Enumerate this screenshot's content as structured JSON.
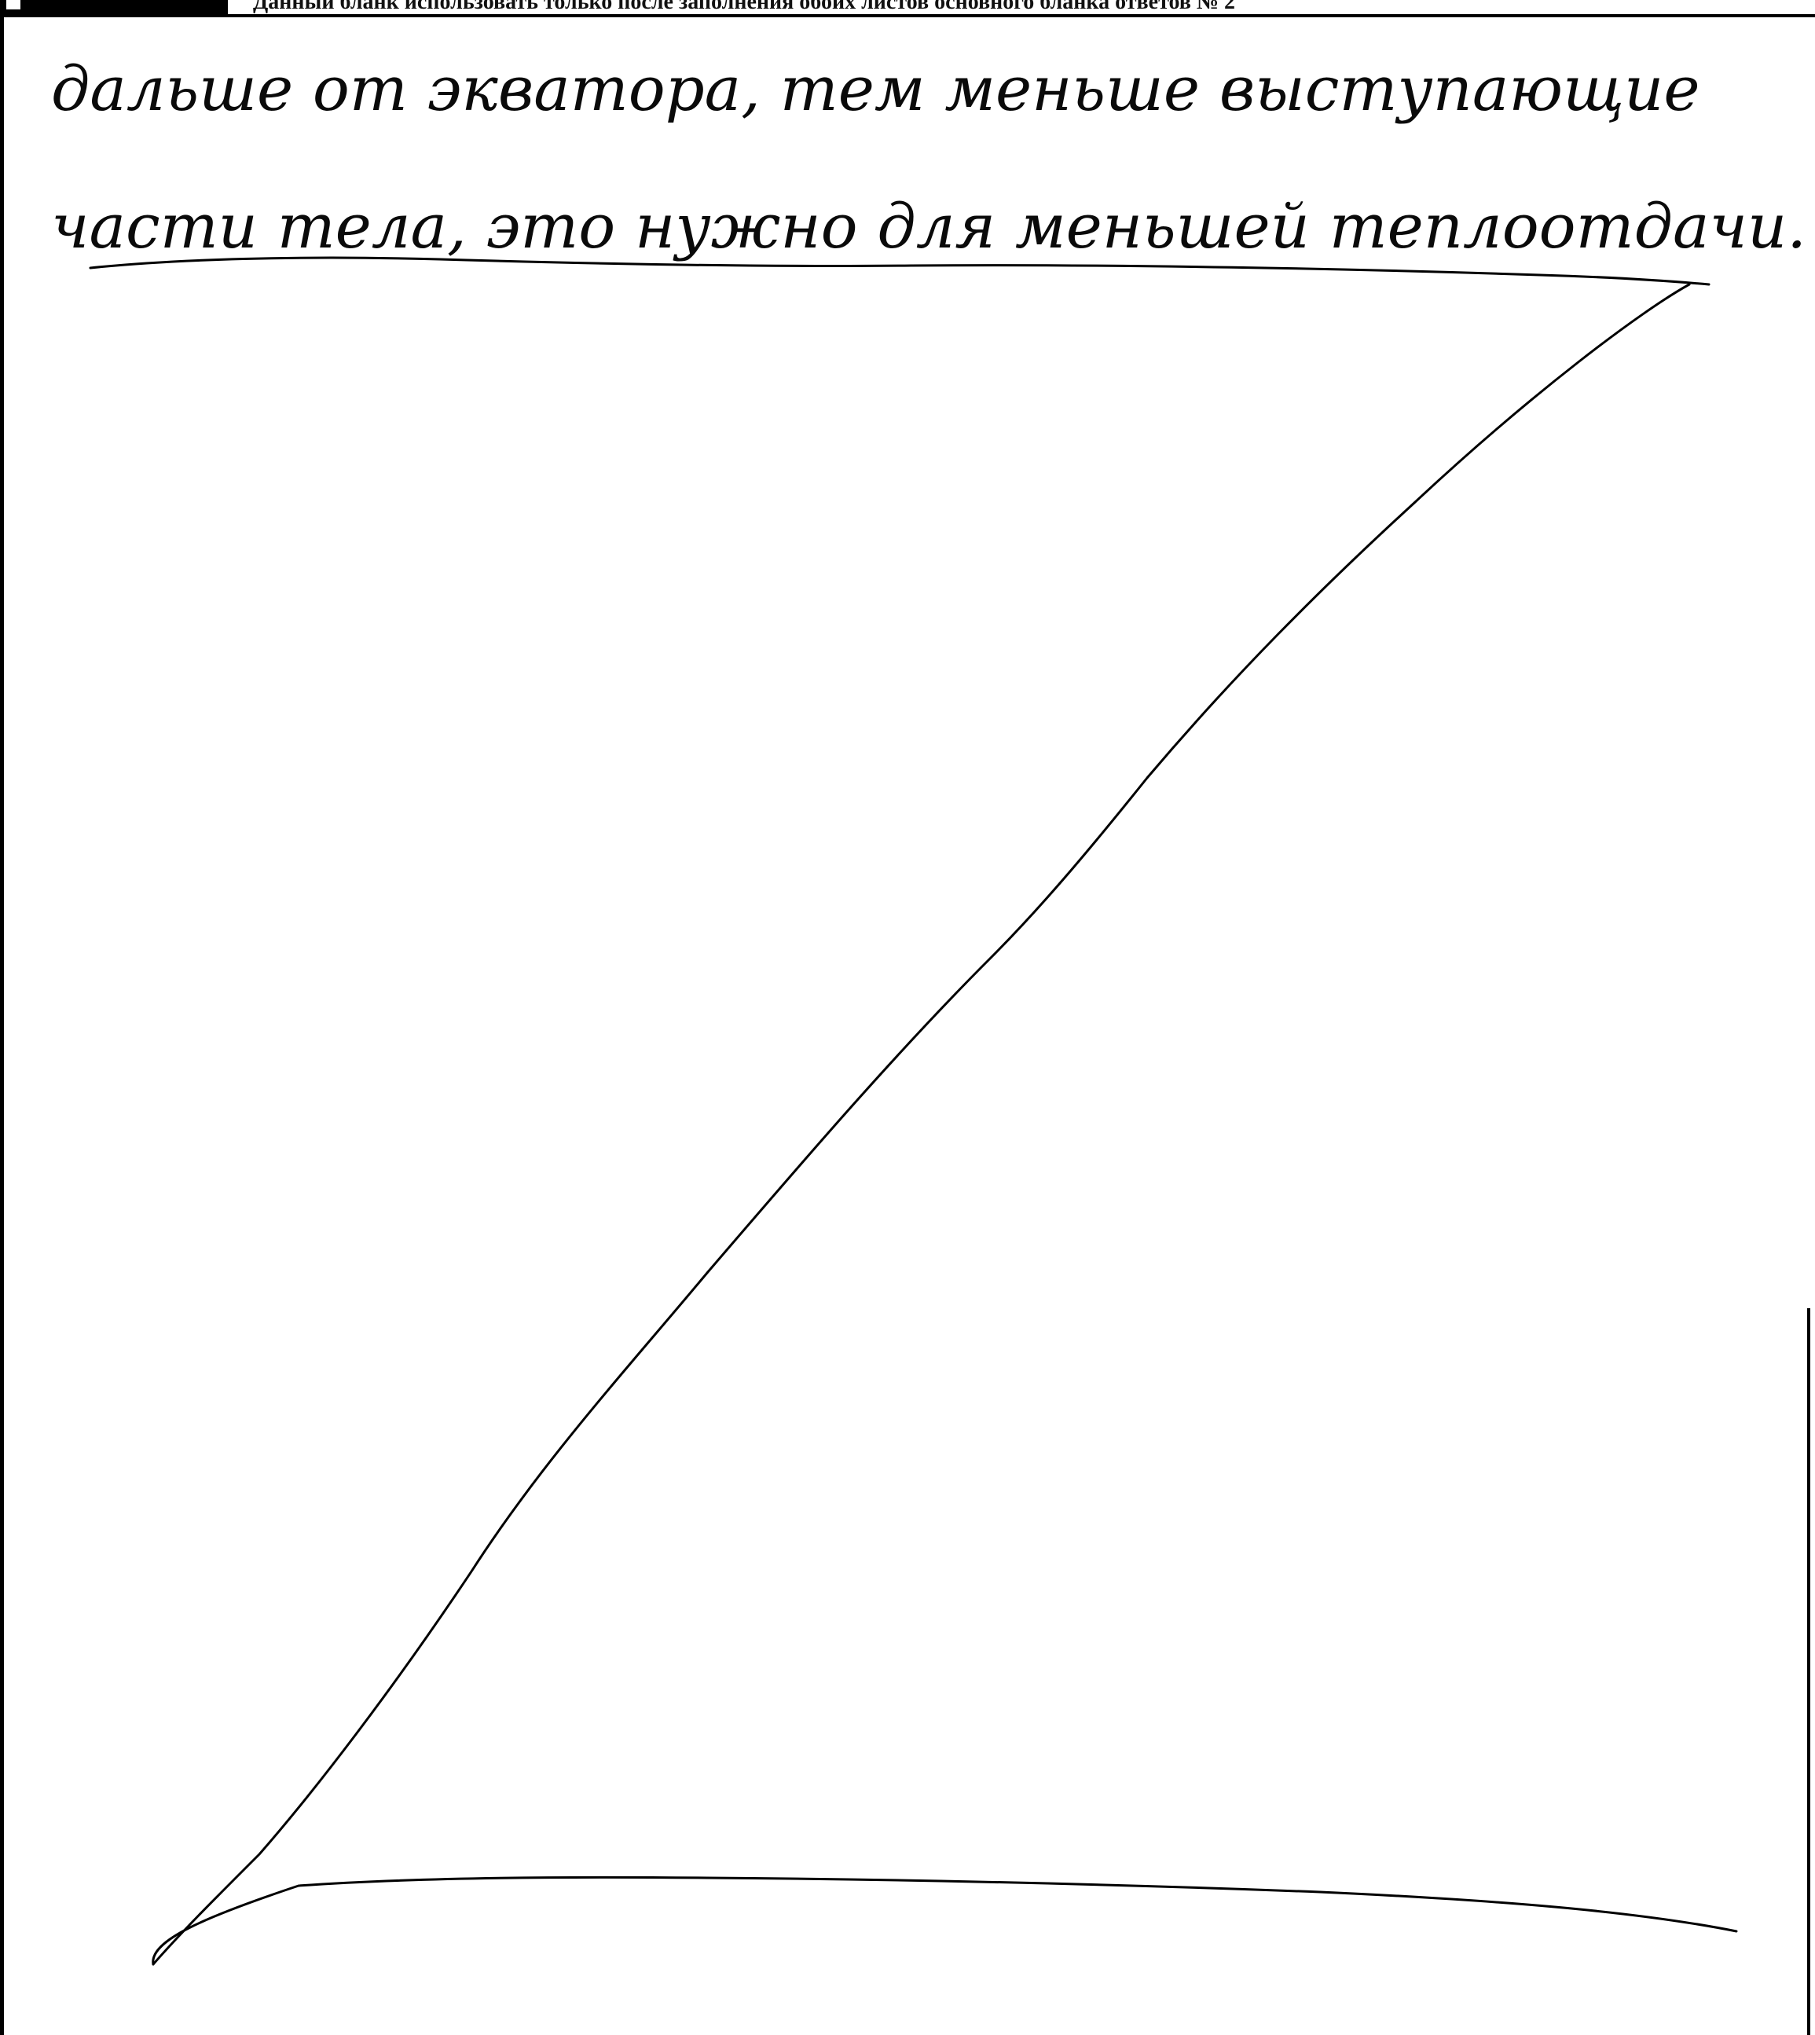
{
  "header": {
    "code_label": "",
    "instruction": "Данный бланк использовать только после заполнения обоих листов основного бланка ответов № 2"
  },
  "answer": {
    "lines": [
      "дальше от экватора, тем меньше выступающие",
      "части тела, это нужно для меньшей теплоотдачи."
    ]
  },
  "marks": {
    "z_cancel_mark": "blank space crossed out with Z-line"
  }
}
